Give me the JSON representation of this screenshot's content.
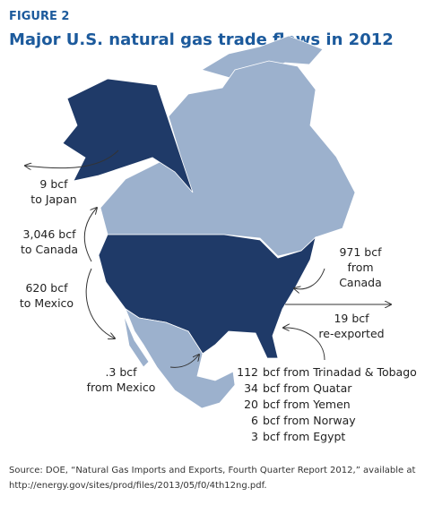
{
  "header": {
    "label": "FIGURE 2",
    "title": "Major U.S. natural gas trade flows in 2012"
  },
  "annotations": {
    "japan": [
      "9 bcf",
      "to Japan"
    ],
    "canada_exports": [
      "3,046 bcf",
      "to Canada"
    ],
    "mexico_exports": [
      "620 bcf",
      "to Mexico"
    ],
    "canada_imports": [
      "971 bcf",
      "from",
      "Canada"
    ],
    "reexported": [
      "19 bcf",
      "re-exported"
    ],
    "mexico_imports": [
      ".3 bcf",
      "from Mexico"
    ]
  },
  "lng_imports": [
    {
      "amount": "112",
      "text": "bcf from Trinadad & Tobago"
    },
    {
      "amount": "34",
      "text": "bcf from Quatar"
    },
    {
      "amount": "20",
      "text": "bcf from Yemen"
    },
    {
      "amount": "6",
      "text": "bcf from Norway"
    },
    {
      "amount": "3",
      "text": "bcf from Egypt"
    }
  ],
  "source": [
    "Source: DOE, “Natural Gas Imports and Exports, Fourth Quarter Report 2012,” available at",
    "http://energy.gov/sites/prod/files/2013/05/f0/4th12ng.pdf."
  ]
}
